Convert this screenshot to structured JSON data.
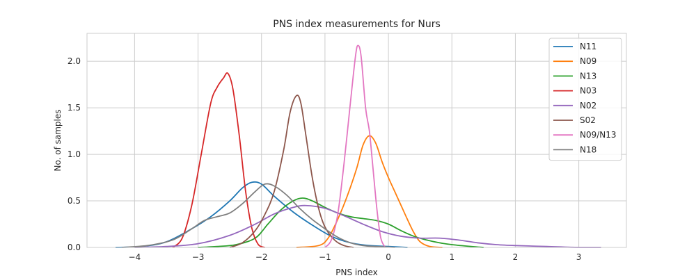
{
  "chart_data": {
    "type": "line",
    "title": "PNS index measurements for Nurs",
    "xlabel": "PNS index",
    "ylabel": "No. of samples",
    "xlim": [
      -4.75,
      3.75
    ],
    "ylim": [
      0,
      2.3
    ],
    "xticks": [
      -4,
      -3,
      -2,
      -1,
      0,
      1,
      2,
      3
    ],
    "xtick_labels": [
      "−4",
      "−3",
      "−2",
      "−1",
      "0",
      "1",
      "2",
      "3"
    ],
    "yticks": [
      0.0,
      0.5,
      1.0,
      1.5,
      2.0
    ],
    "ytick_labels": [
      "0.0",
      "0.5",
      "1.0",
      "1.5",
      "2.0"
    ],
    "grid": true,
    "legend_position": "top-right",
    "series": [
      {
        "name": "N11",
        "color": "#1f77b4",
        "points": [
          [
            -4.3,
            0.0
          ],
          [
            -3.9,
            0.01
          ],
          [
            -3.5,
            0.06
          ],
          [
            -3.1,
            0.2
          ],
          [
            -2.8,
            0.33
          ],
          [
            -2.5,
            0.5
          ],
          [
            -2.3,
            0.64
          ],
          [
            -2.15,
            0.7
          ],
          [
            -2.0,
            0.68
          ],
          [
            -1.8,
            0.55
          ],
          [
            -1.5,
            0.38
          ],
          [
            -1.2,
            0.24
          ],
          [
            -0.9,
            0.12
          ],
          [
            -0.6,
            0.05
          ],
          [
            -0.3,
            0.02
          ],
          [
            0.0,
            0.01
          ],
          [
            0.3,
            0.0
          ]
        ]
      },
      {
        "name": "N09",
        "color": "#ff7f0e",
        "points": [
          [
            -1.45,
            0.0
          ],
          [
            -1.1,
            0.02
          ],
          [
            -0.95,
            0.1
          ],
          [
            -0.8,
            0.3
          ],
          [
            -0.65,
            0.55
          ],
          [
            -0.5,
            0.85
          ],
          [
            -0.4,
            1.1
          ],
          [
            -0.3,
            1.2
          ],
          [
            -0.2,
            1.12
          ],
          [
            -0.1,
            0.92
          ],
          [
            0.0,
            0.75
          ],
          [
            0.1,
            0.6
          ],
          [
            0.2,
            0.45
          ],
          [
            0.3,
            0.3
          ],
          [
            0.4,
            0.16
          ],
          [
            0.5,
            0.06
          ],
          [
            0.65,
            0.01
          ],
          [
            0.85,
            0.0
          ]
        ]
      },
      {
        "name": "N13",
        "color": "#2ca02c",
        "points": [
          [
            -3.0,
            0.0
          ],
          [
            -2.7,
            0.01
          ],
          [
            -2.4,
            0.03
          ],
          [
            -2.1,
            0.1
          ],
          [
            -1.9,
            0.25
          ],
          [
            -1.7,
            0.4
          ],
          [
            -1.5,
            0.5
          ],
          [
            -1.35,
            0.53
          ],
          [
            -1.2,
            0.5
          ],
          [
            -1.0,
            0.43
          ],
          [
            -0.8,
            0.37
          ],
          [
            -0.6,
            0.33
          ],
          [
            -0.4,
            0.31
          ],
          [
            -0.2,
            0.29
          ],
          [
            0.0,
            0.25
          ],
          [
            0.2,
            0.18
          ],
          [
            0.4,
            0.12
          ],
          [
            0.6,
            0.08
          ],
          [
            0.8,
            0.05
          ],
          [
            1.0,
            0.03
          ],
          [
            1.3,
            0.01
          ],
          [
            1.5,
            0.0
          ]
        ]
      },
      {
        "name": "N03",
        "color": "#d62728",
        "points": [
          [
            -3.4,
            0.0
          ],
          [
            -3.25,
            0.1
          ],
          [
            -3.1,
            0.45
          ],
          [
            -2.95,
            1.0
          ],
          [
            -2.8,
            1.55
          ],
          [
            -2.7,
            1.72
          ],
          [
            -2.6,
            1.82
          ],
          [
            -2.53,
            1.87
          ],
          [
            -2.45,
            1.7
          ],
          [
            -2.35,
            1.2
          ],
          [
            -2.25,
            0.6
          ],
          [
            -2.15,
            0.2
          ],
          [
            -2.05,
            0.03
          ],
          [
            -1.95,
            0.0
          ]
        ]
      },
      {
        "name": "N02",
        "color": "#9467bd",
        "points": [
          [
            -4.0,
            0.0
          ],
          [
            -3.5,
            0.01
          ],
          [
            -3.0,
            0.04
          ],
          [
            -2.5,
            0.13
          ],
          [
            -2.1,
            0.25
          ],
          [
            -1.8,
            0.36
          ],
          [
            -1.5,
            0.43
          ],
          [
            -1.3,
            0.45
          ],
          [
            -1.0,
            0.42
          ],
          [
            -0.7,
            0.34
          ],
          [
            -0.4,
            0.25
          ],
          [
            -0.1,
            0.17
          ],
          [
            0.2,
            0.12
          ],
          [
            0.5,
            0.1
          ],
          [
            0.8,
            0.1
          ],
          [
            1.1,
            0.08
          ],
          [
            1.4,
            0.05
          ],
          [
            1.7,
            0.03
          ],
          [
            2.0,
            0.02
          ],
          [
            2.5,
            0.01
          ],
          [
            3.0,
            0.0
          ],
          [
            3.35,
            0.0
          ]
        ]
      },
      {
        "name": "S02",
        "color": "#8c564b",
        "points": [
          [
            -2.5,
            0.0
          ],
          [
            -2.3,
            0.05
          ],
          [
            -2.1,
            0.18
          ],
          [
            -1.95,
            0.35
          ],
          [
            -1.8,
            0.6
          ],
          [
            -1.65,
            1.05
          ],
          [
            -1.55,
            1.45
          ],
          [
            -1.45,
            1.63
          ],
          [
            -1.38,
            1.55
          ],
          [
            -1.3,
            1.2
          ],
          [
            -1.2,
            0.75
          ],
          [
            -1.1,
            0.42
          ],
          [
            -1.0,
            0.22
          ],
          [
            -0.85,
            0.08
          ],
          [
            -0.7,
            0.02
          ],
          [
            -0.55,
            0.0
          ]
        ]
      },
      {
        "name": "N09/N13",
        "color": "#e377c2",
        "points": [
          [
            -1.0,
            0.0
          ],
          [
            -0.9,
            0.08
          ],
          [
            -0.8,
            0.35
          ],
          [
            -0.7,
            0.9
          ],
          [
            -0.6,
            1.55
          ],
          [
            -0.52,
            2.05
          ],
          [
            -0.48,
            2.17
          ],
          [
            -0.43,
            2.05
          ],
          [
            -0.36,
            1.5
          ],
          [
            -0.3,
            1.25
          ],
          [
            -0.25,
            0.9
          ],
          [
            -0.18,
            0.4
          ],
          [
            -0.12,
            0.1
          ],
          [
            -0.05,
            0.0
          ]
        ]
      },
      {
        "name": "N18",
        "color": "#7f7f7f",
        "points": [
          [
            -4.2,
            0.0
          ],
          [
            -3.8,
            0.02
          ],
          [
            -3.4,
            0.08
          ],
          [
            -3.1,
            0.2
          ],
          [
            -2.9,
            0.29
          ],
          [
            -2.7,
            0.33
          ],
          [
            -2.5,
            0.37
          ],
          [
            -2.3,
            0.47
          ],
          [
            -2.1,
            0.6
          ],
          [
            -1.95,
            0.68
          ],
          [
            -1.8,
            0.66
          ],
          [
            -1.6,
            0.56
          ],
          [
            -1.4,
            0.42
          ],
          [
            -1.2,
            0.3
          ],
          [
            -1.0,
            0.2
          ],
          [
            -0.8,
            0.11
          ],
          [
            -0.6,
            0.05
          ],
          [
            -0.4,
            0.02
          ],
          [
            -0.2,
            0.01
          ],
          [
            0.1,
            0.0
          ]
        ]
      }
    ]
  }
}
